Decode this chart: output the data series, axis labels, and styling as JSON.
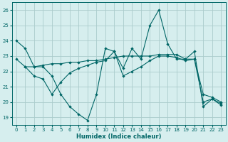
{
  "xlabel": "Humidex (Indice chaleur)",
  "background_color": "#d6eeee",
  "grid_color": "#aacccc",
  "line_color": "#006666",
  "xlim": [
    -0.5,
    23.5
  ],
  "ylim": [
    18.5,
    26.5
  ],
  "xticks": [
    0,
    1,
    2,
    3,
    4,
    5,
    6,
    7,
    8,
    9,
    10,
    11,
    12,
    13,
    14,
    15,
    16,
    17,
    18,
    19,
    20,
    21,
    22,
    23
  ],
  "yticks": [
    19,
    20,
    21,
    22,
    23,
    24,
    25,
    26
  ],
  "line1_x": [
    0,
    1,
    2,
    3,
    4,
    5,
    6,
    7,
    8,
    9,
    10,
    11,
    12,
    13,
    14,
    15,
    16,
    17,
    18,
    19,
    20,
    21,
    22,
    23
  ],
  "line1_y": [
    24.0,
    23.5,
    22.3,
    22.3,
    21.7,
    20.5,
    19.7,
    19.2,
    18.8,
    20.5,
    23.5,
    23.3,
    22.2,
    23.5,
    22.8,
    25.0,
    26.0,
    23.8,
    22.8,
    22.8,
    23.3,
    19.7,
    20.2,
    19.8
  ],
  "line2_x": [
    0,
    1,
    2,
    3,
    4,
    5,
    6,
    7,
    8,
    9,
    10,
    11,
    12,
    13,
    14,
    15,
    16,
    17,
    18,
    19,
    20,
    21,
    22,
    23
  ],
  "line2_y": [
    22.8,
    22.3,
    22.3,
    22.4,
    22.5,
    22.5,
    22.6,
    22.6,
    22.7,
    22.7,
    22.8,
    22.9,
    23.0,
    23.0,
    23.0,
    23.0,
    23.1,
    23.1,
    23.1,
    22.8,
    22.8,
    20.0,
    20.2,
    19.9
  ],
  "line3_x": [
    1,
    2,
    3,
    4,
    5,
    6,
    7,
    8,
    9,
    10,
    11,
    12,
    13,
    14,
    15,
    16,
    17,
    18,
    19,
    20,
    21,
    22,
    23
  ],
  "line3_y": [
    22.3,
    21.7,
    21.5,
    20.5,
    21.3,
    21.9,
    22.2,
    22.4,
    22.6,
    22.7,
    23.3,
    21.7,
    22.0,
    22.3,
    22.7,
    23.0,
    23.0,
    22.9,
    22.7,
    22.8,
    20.5,
    20.3,
    20.0
  ]
}
